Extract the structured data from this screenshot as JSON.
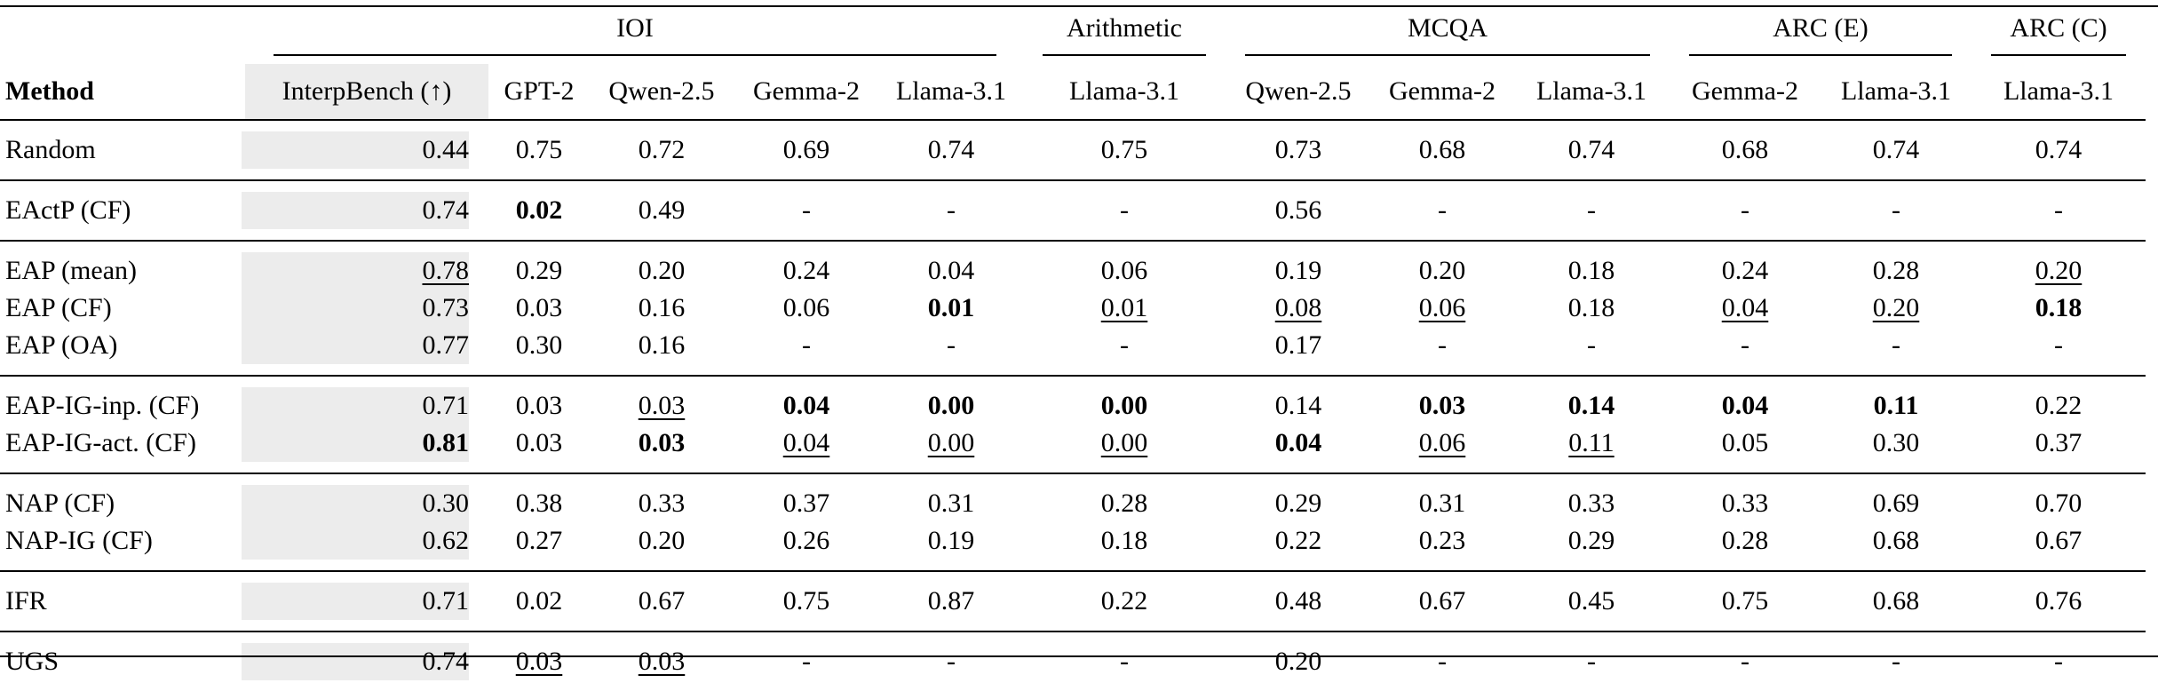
{
  "groups": [
    {
      "label": "",
      "span": 1
    },
    {
      "label": "IOI",
      "span": 5
    },
    {
      "label": "Arithmetic",
      "span": 1
    },
    {
      "label": "MCQA",
      "span": 3
    },
    {
      "label": "ARC (E)",
      "span": 2
    },
    {
      "label": "ARC (C)",
      "span": 1
    }
  ],
  "columns": [
    "Method",
    "InterpBench (↑)",
    "GPT-2",
    "Qwen-2.5",
    "Gemma-2",
    "Llama-3.1",
    "Llama-3.1",
    "Qwen-2.5",
    "Gemma-2",
    "Llama-3.1",
    "Gemma-2",
    "Llama-3.1",
    "Llama-3.1"
  ],
  "row_groups": [
    [
      {
        "method": "Random",
        "cells": [
          {
            "v": "0.44"
          },
          {
            "v": "0.75"
          },
          {
            "v": "0.72"
          },
          {
            "v": "0.69"
          },
          {
            "v": "0.74"
          },
          {
            "v": "0.75"
          },
          {
            "v": "0.73"
          },
          {
            "v": "0.68"
          },
          {
            "v": "0.74"
          },
          {
            "v": "0.68"
          },
          {
            "v": "0.74"
          },
          {
            "v": "0.74"
          }
        ]
      }
    ],
    [
      {
        "method": "EActP (CF)",
        "cells": [
          {
            "v": "0.74"
          },
          {
            "v": "0.02",
            "b": true
          },
          {
            "v": "0.49"
          },
          {
            "v": "-"
          },
          {
            "v": "-"
          },
          {
            "v": "-"
          },
          {
            "v": "0.56"
          },
          {
            "v": "-"
          },
          {
            "v": "-"
          },
          {
            "v": "-"
          },
          {
            "v": "-"
          },
          {
            "v": "-"
          }
        ]
      }
    ],
    [
      {
        "method": "EAP (mean)",
        "cells": [
          {
            "v": "0.78",
            "u": true
          },
          {
            "v": "0.29"
          },
          {
            "v": "0.20"
          },
          {
            "v": "0.24"
          },
          {
            "v": "0.04"
          },
          {
            "v": "0.06"
          },
          {
            "v": "0.19"
          },
          {
            "v": "0.20"
          },
          {
            "v": "0.18"
          },
          {
            "v": "0.24"
          },
          {
            "v": "0.28"
          },
          {
            "v": "0.20",
            "u": true
          }
        ]
      },
      {
        "method": "EAP (CF)",
        "cells": [
          {
            "v": "0.73"
          },
          {
            "v": "0.03"
          },
          {
            "v": "0.16"
          },
          {
            "v": "0.06"
          },
          {
            "v": "0.01",
            "b": true
          },
          {
            "v": "0.01",
            "u": true
          },
          {
            "v": "0.08",
            "u": true
          },
          {
            "v": "0.06",
            "u": true
          },
          {
            "v": "0.18"
          },
          {
            "v": "0.04",
            "u": true
          },
          {
            "v": "0.20",
            "u": true
          },
          {
            "v": "0.18",
            "b": true
          }
        ]
      },
      {
        "method": "EAP (OA)",
        "cells": [
          {
            "v": "0.77"
          },
          {
            "v": "0.30"
          },
          {
            "v": "0.16"
          },
          {
            "v": "-"
          },
          {
            "v": "-"
          },
          {
            "v": "-"
          },
          {
            "v": "0.17"
          },
          {
            "v": "-"
          },
          {
            "v": "-"
          },
          {
            "v": "-"
          },
          {
            "v": "-"
          },
          {
            "v": "-"
          }
        ]
      }
    ],
    [
      {
        "method": "EAP-IG-inp. (CF)",
        "cells": [
          {
            "v": "0.71"
          },
          {
            "v": "0.03"
          },
          {
            "v": "0.03",
            "u": true
          },
          {
            "v": "0.04",
            "b": true
          },
          {
            "v": "0.00",
            "b": true
          },
          {
            "v": "0.00",
            "b": true
          },
          {
            "v": "0.14"
          },
          {
            "v": "0.03",
            "b": true
          },
          {
            "v": "0.14",
            "b": true
          },
          {
            "v": "0.04",
            "b": true
          },
          {
            "v": "0.11",
            "b": true
          },
          {
            "v": "0.22"
          }
        ]
      },
      {
        "method": "EAP-IG-act. (CF)",
        "cells": [
          {
            "v": "0.81",
            "b": true
          },
          {
            "v": "0.03"
          },
          {
            "v": "0.03",
            "b": true
          },
          {
            "v": "0.04",
            "u": true
          },
          {
            "v": "0.00",
            "u": true
          },
          {
            "v": "0.00",
            "u": true
          },
          {
            "v": "0.04",
            "b": true
          },
          {
            "v": "0.06",
            "u": true
          },
          {
            "v": "0.11",
            "u": true
          },
          {
            "v": "0.05"
          },
          {
            "v": "0.30"
          },
          {
            "v": "0.37"
          }
        ]
      }
    ],
    [
      {
        "method": "NAP (CF)",
        "cells": [
          {
            "v": "0.30"
          },
          {
            "v": "0.38"
          },
          {
            "v": "0.33"
          },
          {
            "v": "0.37"
          },
          {
            "v": "0.31"
          },
          {
            "v": "0.28"
          },
          {
            "v": "0.29"
          },
          {
            "v": "0.31"
          },
          {
            "v": "0.33"
          },
          {
            "v": "0.33"
          },
          {
            "v": "0.69"
          },
          {
            "v": "0.70"
          }
        ]
      },
      {
        "method": "NAP-IG (CF)",
        "cells": [
          {
            "v": "0.62"
          },
          {
            "v": "0.27"
          },
          {
            "v": "0.20"
          },
          {
            "v": "0.26"
          },
          {
            "v": "0.19"
          },
          {
            "v": "0.18"
          },
          {
            "v": "0.22"
          },
          {
            "v": "0.23"
          },
          {
            "v": "0.29"
          },
          {
            "v": "0.28"
          },
          {
            "v": "0.68"
          },
          {
            "v": "0.67"
          }
        ]
      }
    ],
    [
      {
        "method": "IFR",
        "cells": [
          {
            "v": "0.71"
          },
          {
            "v": "0.02"
          },
          {
            "v": "0.67"
          },
          {
            "v": "0.75"
          },
          {
            "v": "0.87"
          },
          {
            "v": "0.22"
          },
          {
            "v": "0.48"
          },
          {
            "v": "0.67"
          },
          {
            "v": "0.45"
          },
          {
            "v": "0.75"
          },
          {
            "v": "0.68"
          },
          {
            "v": "0.76"
          }
        ]
      }
    ],
    [
      {
        "method": "UGS",
        "cells": [
          {
            "v": "0.74"
          },
          {
            "v": "0.03",
            "u": true
          },
          {
            "v": "0.03",
            "u": true
          },
          {
            "v": "-"
          },
          {
            "v": "-"
          },
          {
            "v": "-"
          },
          {
            "v": "0.20"
          },
          {
            "v": "-"
          },
          {
            "v": "-"
          },
          {
            "v": "-"
          },
          {
            "v": "-"
          },
          {
            "v": "-"
          }
        ]
      }
    ]
  ]
}
